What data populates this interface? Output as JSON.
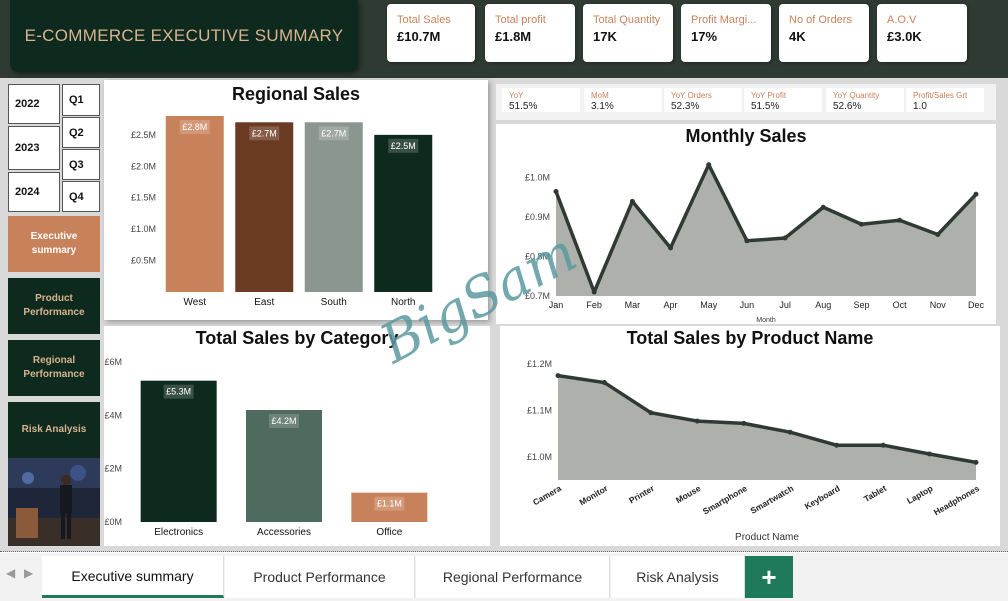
{
  "header": {
    "title": "E-COMMERCE EXECUTIVE SUMMARY"
  },
  "kpis": [
    {
      "label": "Total Sales",
      "value": "£10.7M"
    },
    {
      "label": "Total profit",
      "value": "£1.8M"
    },
    {
      "label": "Total Quantity",
      "value": "17K"
    },
    {
      "label": "Profit Margi...",
      "value": "17%"
    },
    {
      "label": "No of Orders",
      "value": "4K"
    },
    {
      "label": "A.O.V",
      "value": "£3.0K"
    }
  ],
  "growth": [
    {
      "label": "YoY",
      "value": "51.5%"
    },
    {
      "label": "MoM",
      "value": "3.1%"
    },
    {
      "label": "YoY Orders",
      "value": "52.3%"
    },
    {
      "label": "YoY Profit",
      "value": "51.5%"
    },
    {
      "label": "YoY Quantity",
      "value": "52.6%"
    },
    {
      "label": "Profit/Sales Grt",
      "value": "1.0"
    }
  ],
  "slicers": {
    "years": [
      "2022",
      "2023",
      "2024"
    ],
    "quarters": [
      "Q1",
      "Q2",
      "Q3",
      "Q4"
    ]
  },
  "nav": [
    {
      "label": "Executive summary",
      "color": "#c8825b",
      "text": "#ffffff"
    },
    {
      "label": "Product Performance",
      "color": "#0e2a1e",
      "text": "#d8b38f"
    },
    {
      "label": "Regional Performance",
      "color": "#0e2a1e",
      "text": "#d8b38f"
    },
    {
      "label": "Risk Analysis",
      "color": "#0e2a1e",
      "text": "#d8b38f"
    }
  ],
  "watermark": "BigSam",
  "chart_data": [
    {
      "type": "bar",
      "title": "Regional Sales",
      "categories": [
        "West",
        "East",
        "South",
        "North"
      ],
      "values": [
        2.8,
        2.7,
        2.7,
        2.5
      ],
      "labels": [
        "£2.8M",
        "£2.7M",
        "£2.7M",
        "£2.5M"
      ],
      "colors": [
        "#c8825b",
        "#6b3a22",
        "#8c9690",
        "#0e2a1e"
      ],
      "yticks": [
        "£0.5M",
        "£1.0M",
        "£1.5M",
        "£2.0M",
        "£2.5M"
      ],
      "ytick_values": [
        0.5,
        1.0,
        1.5,
        2.0,
        2.5
      ],
      "ylim": [
        0,
        2.8
      ],
      "grid": false
    },
    {
      "type": "area",
      "title": "Monthly Sales",
      "xlabel": "Month",
      "x": [
        "Jan",
        "Feb",
        "Mar",
        "Apr",
        "May",
        "Jun",
        "Jul",
        "Aug",
        "Sep",
        "Oct",
        "Nov",
        "Dec"
      ],
      "values": [
        0.965,
        0.71,
        0.94,
        0.822,
        1.033,
        0.84,
        0.847,
        0.925,
        0.882,
        0.892,
        0.856,
        0.958
      ],
      "yticks": [
        "£0.7M",
        "£0.8M",
        "£0.9M",
        "£1.0M"
      ],
      "ytick_values": [
        0.7,
        0.8,
        0.9,
        1.0
      ],
      "ylim": [
        0.7,
        1.05
      ],
      "color": "#aeb0ac",
      "line": "#2f3a33"
    },
    {
      "type": "bar",
      "title": "Total Sales by Category",
      "categories": [
        "Electronics",
        "Accessories",
        "Office"
      ],
      "values": [
        5.3,
        4.2,
        1.1
      ],
      "labels": [
        "£5.3M",
        "£4.2M",
        "£1.1M"
      ],
      "colors": [
        "#0e2a1e",
        "#4f6a5e",
        "#c8825b"
      ],
      "yticks": [
        "£0M",
        "£2M",
        "£4M",
        "£6M"
      ],
      "ytick_values": [
        0,
        2,
        4,
        6
      ],
      "ylim": [
        0,
        6
      ],
      "grid": false
    },
    {
      "type": "area",
      "title": "Total Sales by Product Name",
      "xlabel": "Product Name",
      "x": [
        "Camera",
        "Monitor",
        "Printer",
        "Mouse",
        "Smartphone",
        "Smartwatch",
        "Keyboard",
        "Tablet",
        "Laptop",
        "Headphones"
      ],
      "values": [
        1.175,
        1.16,
        1.095,
        1.077,
        1.072,
        1.053,
        1.025,
        1.025,
        1.006,
        0.988
      ],
      "yticks": [
        "£1.0M",
        "£1.1M",
        "£1.2M"
      ],
      "ytick_values": [
        1.0,
        1.1,
        1.2
      ],
      "ylim": [
        0.95,
        1.2
      ],
      "color": "#aeb0ac",
      "line": "#2f3a33"
    }
  ],
  "tabs": [
    {
      "label": "Executive summary",
      "active": true
    },
    {
      "label": "Product Performance",
      "active": false
    },
    {
      "label": "Regional Performance",
      "active": false
    },
    {
      "label": "Risk Analysis",
      "active": false
    }
  ],
  "add_tab": "+"
}
